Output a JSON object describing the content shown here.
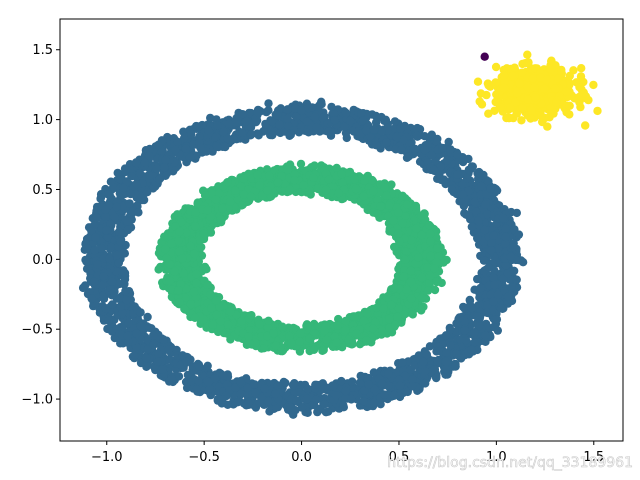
{
  "chart_data": {
    "type": "scatter",
    "title": "",
    "xlabel": "",
    "ylabel": "",
    "xlim": [
      -1.24,
      1.65
    ],
    "ylim": [
      -1.3,
      1.72
    ],
    "x_ticks": [
      -1.0,
      -0.5,
      0.0,
      0.5,
      1.0,
      1.5
    ],
    "y_ticks": [
      -1.0,
      -0.5,
      0.0,
      0.5,
      1.0,
      1.5
    ],
    "x_tick_labels": [
      "−1.0",
      "−0.5",
      "0.0",
      "0.5",
      "1.0",
      "1.5"
    ],
    "y_tick_labels": [
      "−1.0",
      "−0.5",
      "0.0",
      "0.5",
      "1.0",
      "1.5"
    ],
    "grid": false,
    "legend": "none",
    "series": [
      {
        "shape": "ring",
        "color": "#31688e",
        "center": [
          0.0,
          0.0
        ],
        "radius_x": [
          0.92,
          1.12
        ],
        "radius_y": [
          0.9,
          1.1
        ]
      },
      {
        "shape": "ring",
        "color": "#35b779",
        "center": [
          0.0,
          0.0
        ],
        "radius_x": [
          0.52,
          0.72
        ],
        "radius_y": [
          0.48,
          0.66
        ]
      },
      {
        "shape": "cluster",
        "color": "#fde725",
        "center": [
          1.2,
          1.2
        ],
        "spread": [
          0.1,
          0.08
        ]
      },
      {
        "shape": "points",
        "color": "#440154",
        "x": [
          0.94
        ],
        "y": [
          1.45
        ]
      }
    ]
  },
  "watermark": "https://blog.csdn.net/qq_33189961"
}
